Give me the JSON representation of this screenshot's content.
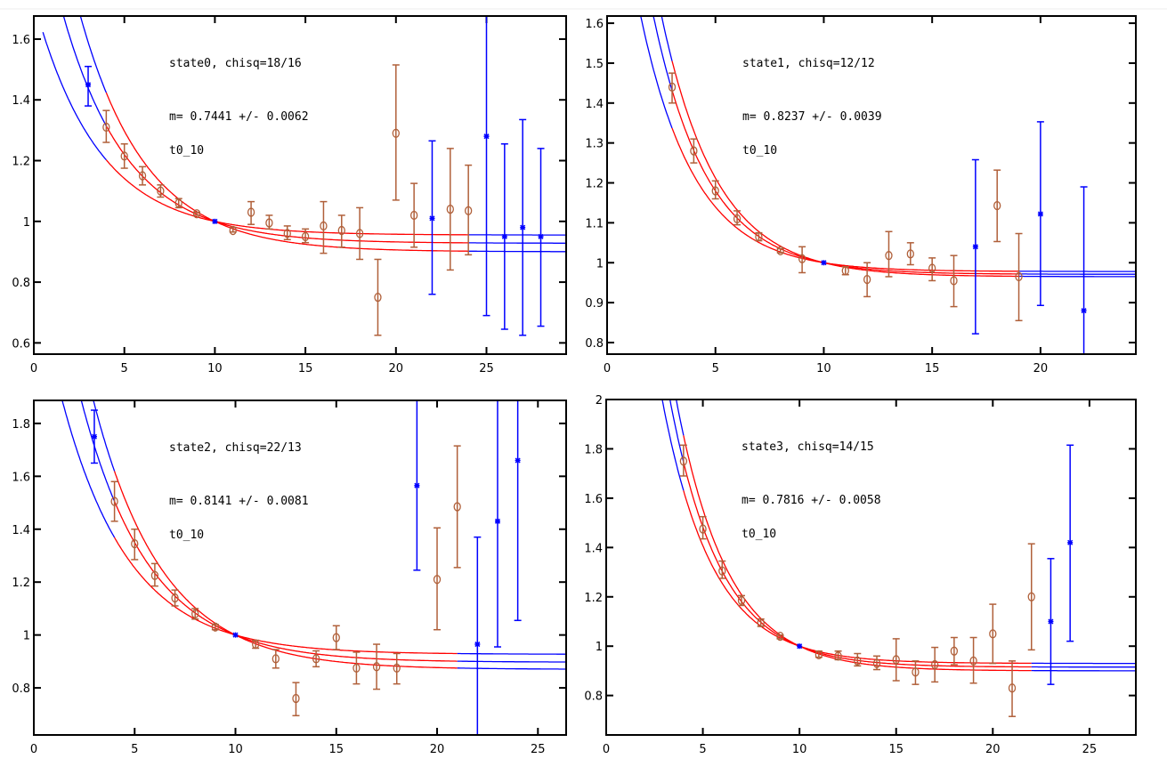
{
  "colors": {
    "fit_range": "#ff0000",
    "outside_range": "#0000ff",
    "fit_points": "#b0603a",
    "excluded_points": "#0000ff",
    "frame": "#000000"
  },
  "chart_data": [
    {
      "type": "scatter",
      "annotations": [
        "state0, chisq=18/16",
        "m= 0.7441 +/- 0.0062",
        "t0_10"
      ],
      "xlim": [
        0,
        29.4
      ],
      "ylim": [
        0.563,
        1.676
      ],
      "x_ticks": [
        "0",
        "5",
        "10",
        "15",
        "20",
        "25"
      ],
      "y_ticks": [
        "0.6",
        "0.8",
        "1",
        "1.2",
        "1.4",
        "1.6"
      ],
      "grid": false,
      "fit": {
        "range": [
          4,
          24
        ],
        "plateaus": [
          0.9,
          0.928,
          0.955
        ]
      },
      "fit_points": [
        [
          4,
          1.31,
          1.26,
          1.365
        ],
        [
          5,
          1.215,
          1.175,
          1.255
        ],
        [
          6,
          1.15,
          1.12,
          1.18
        ],
        [
          7,
          1.1,
          1.08,
          1.12
        ],
        [
          8,
          1.06,
          1.045,
          1.075
        ],
        [
          9,
          1.025,
          1.02,
          1.03
        ],
        [
          11,
          0.97,
          0.965,
          0.98
        ],
        [
          12,
          1.03,
          0.99,
          1.065
        ],
        [
          13,
          0.995,
          0.975,
          1.02
        ],
        [
          14,
          0.96,
          0.94,
          0.985
        ],
        [
          15,
          0.95,
          0.93,
          0.975
        ],
        [
          16,
          0.985,
          0.895,
          1.065
        ],
        [
          17,
          0.97,
          0.915,
          1.02
        ],
        [
          18,
          0.96,
          0.875,
          1.045
        ],
        [
          19,
          0.75,
          0.625,
          0.875
        ],
        [
          20,
          1.29,
          1.07,
          1.515
        ],
        [
          21,
          1.02,
          0.915,
          1.125
        ],
        [
          23,
          1.04,
          0.84,
          1.24
        ],
        [
          24,
          1.035,
          0.89,
          1.185
        ]
      ],
      "excluded_points": [
        [
          3,
          1.45,
          1.38,
          1.51
        ],
        [
          10,
          1.0,
          1.0,
          1.0
        ],
        [
          22,
          1.01,
          0.76,
          1.265
        ],
        [
          25,
          1.28,
          0.69,
          1.75
        ],
        [
          26,
          0.95,
          0.645,
          1.255
        ],
        [
          27,
          0.98,
          0.625,
          1.335
        ],
        [
          28,
          0.95,
          0.655,
          1.24
        ]
      ]
    },
    {
      "type": "scatter",
      "annotations": [
        "state1, chisq=12/12",
        "m= 0.8237 +/- 0.0039",
        "t0_10"
      ],
      "xlim": [
        0,
        24.4
      ],
      "ylim": [
        0.771,
        1.618
      ],
      "x_ticks": [
        "0",
        "5",
        "10",
        "15",
        "20"
      ],
      "y_ticks": [
        "0.8",
        "0.9",
        "1",
        "1.1",
        "1.2",
        "1.3",
        "1.4",
        "1.5",
        "1.6"
      ],
      "grid": false,
      "fit": {
        "range": [
          3,
          19
        ],
        "plateaus": [
          0.965,
          0.971,
          0.978
        ]
      },
      "fit_points": [
        [
          3,
          1.44,
          1.4,
          1.475
        ],
        [
          4,
          1.28,
          1.25,
          1.31
        ],
        [
          5,
          1.18,
          1.16,
          1.205
        ],
        [
          6,
          1.11,
          1.095,
          1.13
        ],
        [
          7,
          1.065,
          1.055,
          1.075
        ],
        [
          8,
          1.03,
          1.025,
          1.035
        ],
        [
          9,
          1.01,
          0.975,
          1.04
        ],
        [
          11,
          0.98,
          0.97,
          0.99
        ],
        [
          12,
          0.958,
          0.915,
          1.0
        ],
        [
          13,
          1.018,
          0.965,
          1.078
        ],
        [
          14,
          1.022,
          0.995,
          1.05
        ],
        [
          15,
          0.986,
          0.955,
          1.012
        ],
        [
          16,
          0.955,
          0.89,
          1.018
        ],
        [
          18,
          1.143,
          1.053,
          1.232
        ],
        [
          19,
          0.965,
          0.855,
          1.073
        ]
      ],
      "excluded_points": [
        [
          10,
          1.0,
          1.0,
          1.0
        ],
        [
          17,
          1.04,
          0.822,
          1.258
        ],
        [
          20,
          1.122,
          0.893,
          1.353
        ],
        [
          22,
          0.88,
          0.7,
          1.19
        ]
      ]
    },
    {
      "type": "scatter",
      "annotations": [
        "state2, chisq=22/13",
        "m= 0.8141 +/- 0.0081",
        "t0_10"
      ],
      "xlim": [
        0,
        26.4
      ],
      "ylim": [
        0.622,
        1.887
      ],
      "x_ticks": [
        "0",
        "5",
        "10",
        "15",
        "20",
        "25"
      ],
      "y_ticks": [
        "0.8",
        "1",
        "1.2",
        "1.4",
        "1.6",
        "1.8"
      ],
      "grid": false,
      "fit": {
        "range": [
          4,
          21
        ],
        "plateaus": [
          0.87,
          0.897,
          0.927
        ]
      },
      "fit_points": [
        [
          4,
          1.505,
          1.43,
          1.58
        ],
        [
          5,
          1.345,
          1.285,
          1.4
        ],
        [
          6,
          1.225,
          1.185,
          1.27
        ],
        [
          7,
          1.14,
          1.11,
          1.17
        ],
        [
          8,
          1.08,
          1.06,
          1.1
        ],
        [
          9,
          1.03,
          1.02,
          1.04
        ],
        [
          11,
          0.965,
          0.95,
          0.98
        ],
        [
          12,
          0.91,
          0.875,
          0.945
        ],
        [
          13,
          0.76,
          0.695,
          0.82
        ],
        [
          14,
          0.91,
          0.88,
          0.94
        ],
        [
          15,
          0.99,
          0.945,
          1.035
        ],
        [
          16,
          0.875,
          0.815,
          0.935
        ],
        [
          17,
          0.88,
          0.795,
          0.965
        ],
        [
          18,
          0.875,
          0.815,
          0.93
        ],
        [
          20,
          1.21,
          1.02,
          1.405
        ],
        [
          21,
          1.485,
          1.255,
          1.715
        ]
      ],
      "excluded_points": [
        [
          3,
          1.75,
          1.65,
          1.85
        ],
        [
          10,
          1.0,
          1.0,
          1.0
        ],
        [
          19,
          1.565,
          1.245,
          2.0
        ],
        [
          22,
          0.965,
          0.5,
          1.37
        ],
        [
          23,
          1.43,
          0.955,
          2.0
        ],
        [
          24,
          1.66,
          1.055,
          2.0
        ]
      ]
    },
    {
      "type": "scatter",
      "annotations": [
        "state3, chisq=14/15",
        "m= 0.7816 +/- 0.0058",
        "t0_10"
      ],
      "xlim": [
        0,
        27.4
      ],
      "ylim": [
        0.64,
        2.0
      ],
      "x_ticks": [
        "0",
        "5",
        "10",
        "15",
        "20",
        "25"
      ],
      "y_ticks": [
        "0.8",
        "1",
        "1.2",
        "1.4",
        "1.6",
        "1.8",
        "2"
      ],
      "grid": false,
      "fit": {
        "range": [
          4,
          22
        ],
        "plateaus": [
          0.9,
          0.915,
          0.93
        ]
      },
      "fit_points": [
        [
          4,
          1.75,
          1.69,
          1.815
        ],
        [
          5,
          1.475,
          1.435,
          1.525
        ],
        [
          6,
          1.305,
          1.275,
          1.345
        ],
        [
          7,
          1.185,
          1.165,
          1.205
        ],
        [
          8,
          1.095,
          1.08,
          1.11
        ],
        [
          9,
          1.04,
          1.03,
          1.045
        ],
        [
          11,
          0.965,
          0.955,
          0.98
        ],
        [
          12,
          0.96,
          0.945,
          0.98
        ],
        [
          13,
          0.94,
          0.92,
          0.97
        ],
        [
          14,
          0.93,
          0.905,
          0.96
        ],
        [
          15,
          0.945,
          0.86,
          1.03
        ],
        [
          16,
          0.895,
          0.845,
          0.94
        ],
        [
          17,
          0.925,
          0.855,
          0.995
        ],
        [
          18,
          0.98,
          0.925,
          1.035
        ],
        [
          19,
          0.94,
          0.85,
          1.035
        ],
        [
          20,
          1.05,
          0.93,
          1.17
        ],
        [
          21,
          0.83,
          0.715,
          0.94
        ],
        [
          22,
          1.2,
          0.985,
          1.415
        ]
      ],
      "excluded_points": [
        [
          10,
          1.0,
          1.0,
          1.0
        ],
        [
          23,
          1.1,
          0.845,
          1.355
        ],
        [
          24,
          1.42,
          1.02,
          1.815
        ]
      ]
    }
  ]
}
